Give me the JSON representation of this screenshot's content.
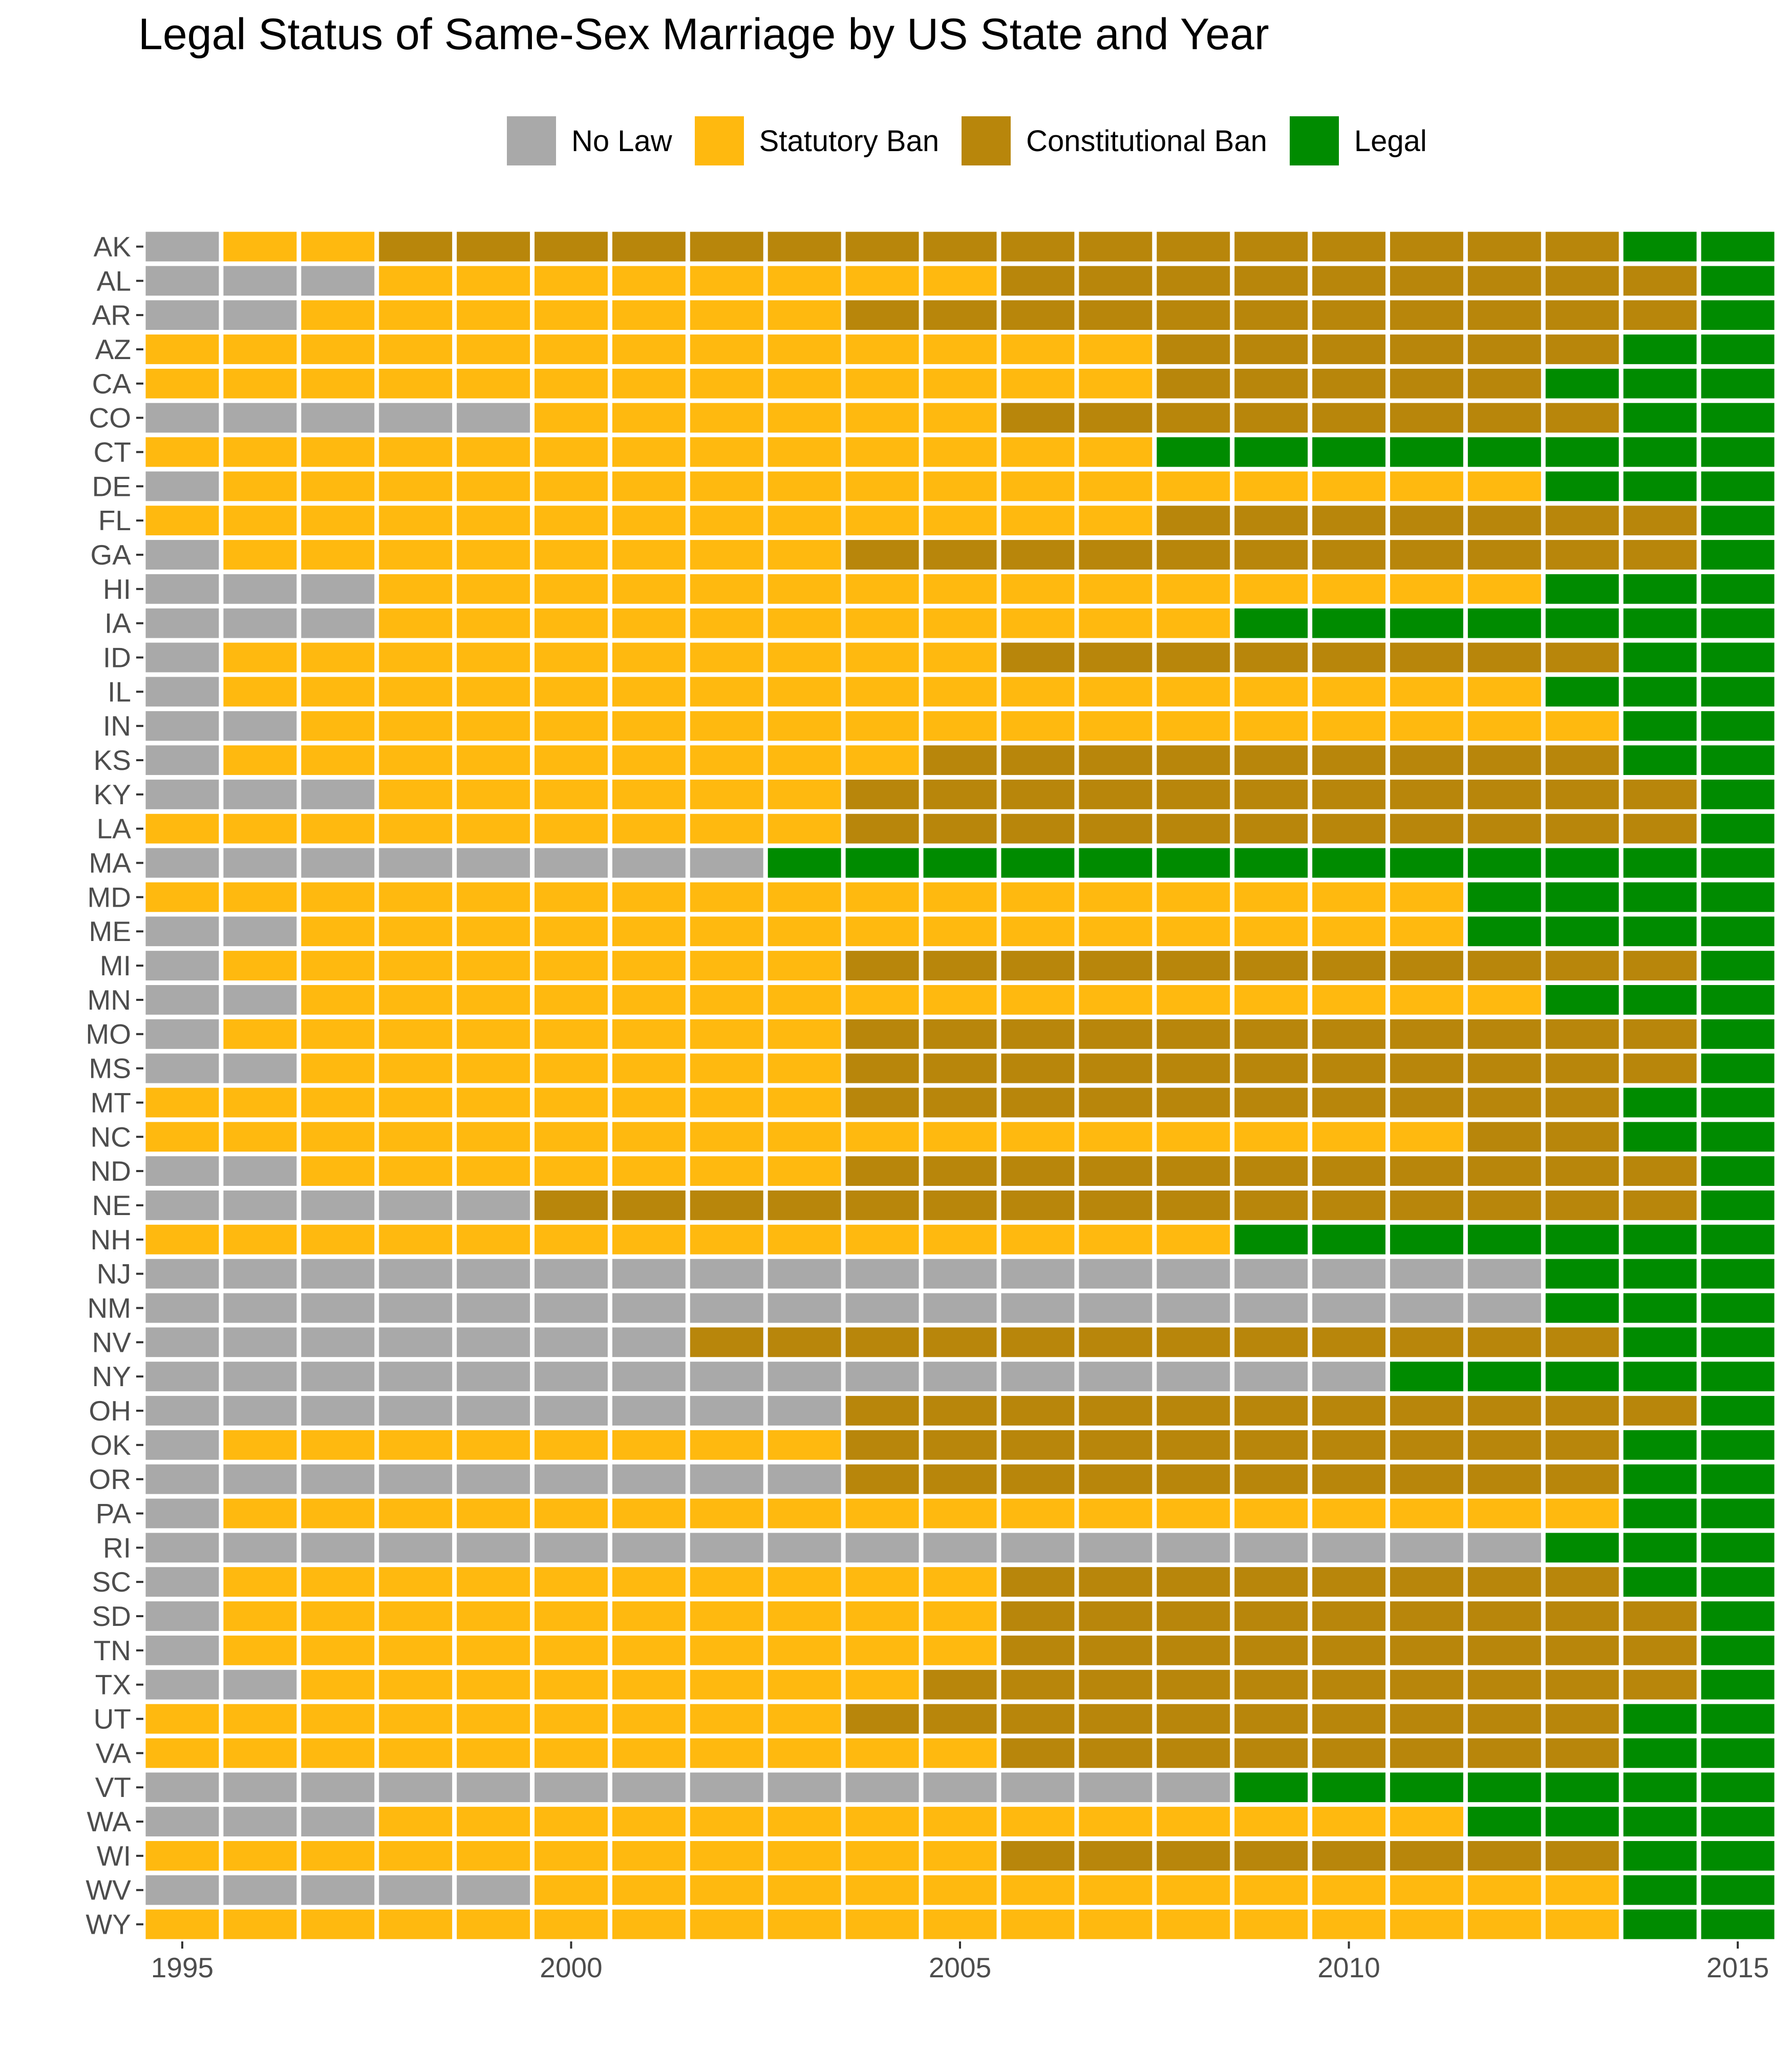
{
  "chart_data": {
    "type": "heatmap",
    "title": "Legal Status of Same-Sex Marriage by US State and Year",
    "xlabel": "",
    "ylabel": "",
    "x_ticks": [
      "1995",
      "2000",
      "2005",
      "2010",
      "2015"
    ],
    "years": [
      1995,
      1996,
      1997,
      1998,
      1999,
      2000,
      2001,
      2002,
      2003,
      2004,
      2005,
      2006,
      2007,
      2008,
      2009,
      2010,
      2011,
      2012,
      2013,
      2014,
      2015
    ],
    "legend": {
      "position": "top",
      "items": [
        {
          "code": "N",
          "label": "No Law",
          "color": "#a9a9a9"
        },
        {
          "code": "S",
          "label": "Statutory Ban",
          "color": "#ffb90f"
        },
        {
          "code": "C",
          "label": "Constitutional Ban",
          "color": "#b8860b"
        },
        {
          "code": "L",
          "label": "Legal",
          "color": "#008b00"
        }
      ]
    },
    "grid": false,
    "status_codes_note": "N=No Law, S=Statutory Ban, C=Constitutional Ban, L=Legal",
    "rows": [
      {
        "state": "AK",
        "status": "NSSCCCCCCCCCCCCCCCCLL"
      },
      {
        "state": "AL",
        "status": "NNNSSSSSSSSCCCCCCCCCL"
      },
      {
        "state": "AR",
        "status": "NNSSSSSSSCCCCCCCCCCCL"
      },
      {
        "state": "AZ",
        "status": "SSSSSSSSSSSSSCCCCCCLL"
      },
      {
        "state": "CA",
        "status": "SSSSSSSSSSSSSCCCCCLLL"
      },
      {
        "state": "CO",
        "status": "NNNNNSSSSSSCCCCCCCCLL"
      },
      {
        "state": "CT",
        "status": "SSSSSSSSSSSSSLLLLLLLL"
      },
      {
        "state": "DE",
        "status": "NSSSSSSSSSSSSSSSSSLLL"
      },
      {
        "state": "FL",
        "status": "SSSSSSSSSSSSSCCCCCCCL"
      },
      {
        "state": "GA",
        "status": "NSSSSSSSSCCCCCCCCCCCL"
      },
      {
        "state": "HI",
        "status": "NNNSSSSSSSSSSSSSSSLLL"
      },
      {
        "state": "IA",
        "status": "NNNSSSSSSSSSSSLLLLLLL"
      },
      {
        "state": "ID",
        "status": "NSSSSSSSSSSCCCCCCCCLL"
      },
      {
        "state": "IL",
        "status": "NSSSSSSSSSSSSSSSSSLLL"
      },
      {
        "state": "IN",
        "status": "NNSSSSSSSSSSSSSSSSSLL"
      },
      {
        "state": "KS",
        "status": "NSSSSSSSSSCCCCCCCCCLL"
      },
      {
        "state": "KY",
        "status": "NNNSSSSSSCCCCCCCCCCCL"
      },
      {
        "state": "LA",
        "status": "SSSSSSSSSCCCCCCCCCCCL"
      },
      {
        "state": "MA",
        "status": "NNNNNNNNLLLLLLLLLLLLL"
      },
      {
        "state": "MD",
        "status": "SSSSSSSSSSSSSSSSSLLLL"
      },
      {
        "state": "ME",
        "status": "NNSSSSSSSSSSSSSSSLLLL"
      },
      {
        "state": "MI",
        "status": "NSSSSSSSSCCCCCCCCCCCL"
      },
      {
        "state": "MN",
        "status": "NNSSSSSSSSSSSSSSSSLLL"
      },
      {
        "state": "MO",
        "status": "NSSSSSSSSCCCCCCCCCCCL"
      },
      {
        "state": "MS",
        "status": "NNSSSSSSSCCCCCCCCCCCL"
      },
      {
        "state": "MT",
        "status": "SSSSSSSSSCCCCCCCCCCLL"
      },
      {
        "state": "NC",
        "status": "SSSSSSSSSSSSSSSSSCCLL"
      },
      {
        "state": "ND",
        "status": "NNSSSSSSSCCCCCCCCCCCL"
      },
      {
        "state": "NE",
        "status": "NNNNNCCCCCCCCCCCCCCCL"
      },
      {
        "state": "NH",
        "status": "SSSSSSSSSSSSSSLLLLLLL"
      },
      {
        "state": "NJ",
        "status": "NNNNNNNNNNNNNNNNNNLLL"
      },
      {
        "state": "NM",
        "status": "NNNNNNNNNNNNNNNNNNLLL"
      },
      {
        "state": "NV",
        "status": "NNNNNNNCCCCCCCCCCCCLL"
      },
      {
        "state": "NY",
        "status": "NNNNNNNNNNNNNNNNLLLLL"
      },
      {
        "state": "OH",
        "status": "NNNNNNNNNCCCCCCCCCCCL"
      },
      {
        "state": "OK",
        "status": "NSSSSSSSSCCCCCCCCCCLL"
      },
      {
        "state": "OR",
        "status": "NNNNNNNNNCCCCCCCCCCLL"
      },
      {
        "state": "PA",
        "status": "NSSSSSSSSSSSSSSSSSSLL"
      },
      {
        "state": "RI",
        "status": "NNNNNNNNNNNNNNNNNNLLL"
      },
      {
        "state": "SC",
        "status": "NSSSSSSSSSSCCCCCCCCLL"
      },
      {
        "state": "SD",
        "status": "NSSSSSSSSSSCCCCCCCCCL"
      },
      {
        "state": "TN",
        "status": "NSSSSSSSSSSCCCCCCCCCL"
      },
      {
        "state": "TX",
        "status": "NNSSSSSSSSCCCCCCCCCCL"
      },
      {
        "state": "UT",
        "status": "SSSSSSSSSCCCCCCCCCCLL"
      },
      {
        "state": "VA",
        "status": "SSSSSSSSSSSCCCCCCCCLL"
      },
      {
        "state": "VT",
        "status": "NNNNNNNNNNNNNNLLLLLLL"
      },
      {
        "state": "WA",
        "status": "NNNSSSSSSSSSSSSSSLLLL"
      },
      {
        "state": "WI",
        "status": "SSSSSSSSSSSCCCCCCCCLL"
      },
      {
        "state": "WV",
        "status": "NNNNNSSSSSSSSSSSSSSLL"
      },
      {
        "state": "WY",
        "status": "SSSSSSSSSSSSSSSSSSSLL"
      }
    ]
  }
}
